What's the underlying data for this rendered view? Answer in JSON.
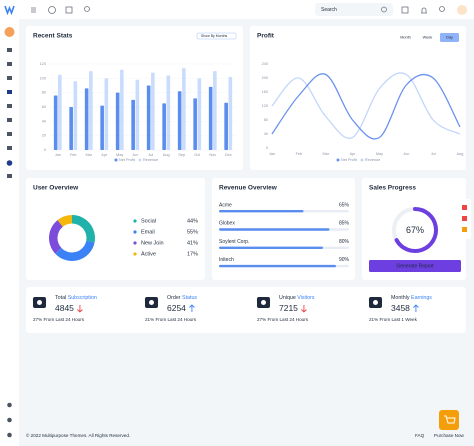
{
  "header": {
    "search_placeholder": "Search"
  },
  "chart_data": [
    {
      "type": "bar",
      "title": "Recent Stats",
      "filter": "Show By Months",
      "categories": [
        "Jan",
        "Feb",
        "Mar",
        "Apr",
        "May",
        "Jun",
        "Jul",
        "Aug",
        "Sep",
        "Oct",
        "Nov",
        "Dec"
      ],
      "series": [
        {
          "name": "Net Profit",
          "color": "#5b8def",
          "values": [
            76,
            60,
            86,
            62,
            80,
            70,
            90,
            65,
            82,
            72,
            88,
            66
          ]
        },
        {
          "name": "Revenue",
          "color": "#c9dcfb",
          "values": [
            105,
            96,
            110,
            100,
            112,
            98,
            108,
            104,
            114,
            100,
            110,
            102
          ]
        }
      ],
      "ylim": [
        0,
        120
      ],
      "yticks": [
        0,
        20,
        40,
        60,
        80,
        100,
        120
      ],
      "grid": true
    },
    {
      "type": "line",
      "title": "Profit",
      "buttons": [
        "Month",
        "Week",
        "Day"
      ],
      "active_button": 2,
      "categories": [
        "Jan",
        "Feb",
        "Mar",
        "Apr",
        "May",
        "Jun",
        "Jul",
        "Aug"
      ],
      "series": [
        {
          "name": "Net Profit",
          "color": "#6b93ee",
          "values": [
            40,
            150,
            210,
            80,
            30,
            180,
            200,
            60
          ]
        },
        {
          "name": "Revenue",
          "color": "#c3d6fa",
          "values": [
            120,
            200,
            90,
            30,
            170,
            210,
            80,
            40
          ]
        }
      ],
      "ylim": [
        0,
        240
      ],
      "yticks": [
        0,
        40,
        80,
        120,
        160,
        200,
        240
      ],
      "grid": false
    },
    {
      "type": "pie",
      "title": "User Overview",
      "donut": true,
      "categories": [
        "Social",
        "Email",
        "New Join",
        "Active"
      ],
      "values": [
        44,
        55,
        41,
        17
      ],
      "value_labels": [
        "44%",
        "55%",
        "41%",
        "17%"
      ],
      "colors": [
        "#20b2aa",
        "#3b82f6",
        "#7c4ddb",
        "#f5b70a"
      ]
    }
  ],
  "revenue_overview": {
    "title": "Revenue Overview",
    "color": "#5b8def",
    "items": [
      {
        "name": "Acme",
        "value": 65,
        "label": "65%"
      },
      {
        "name": "Globex",
        "value": 85,
        "label": "85%"
      },
      {
        "name": "Soylent Corp.",
        "value": 80,
        "label": "80%"
      },
      {
        "name": "Initech",
        "value": 90,
        "label": "90%"
      }
    ]
  },
  "sales_progress": {
    "title": "Sales Progress",
    "value": 67,
    "label": "67%",
    "color": "#6d3fe0",
    "button": "Generate Report"
  },
  "stats": [
    {
      "title": "Total",
      "highlight": "Subscription",
      "value": 4845,
      "trend": "down",
      "note": "27% From Last 24 Hours"
    },
    {
      "title": "Order",
      "highlight": "Status",
      "value": 6254,
      "trend": "up",
      "note": "21% From Last 24 Hours"
    },
    {
      "title": "Unique",
      "highlight": "Visitors",
      "value": 7215,
      "trend": "down",
      "note": "27% From Last 24 Hours"
    },
    {
      "title": "Monthly",
      "highlight": "Earnings",
      "value": 3458,
      "trend": "up",
      "note": "21% From Last 1 Week"
    }
  ],
  "footer": {
    "copyright": "© 2022 Multipurpose Themes. All Rights Reserved.",
    "links": [
      "FAQ",
      "Purchase Now"
    ]
  }
}
